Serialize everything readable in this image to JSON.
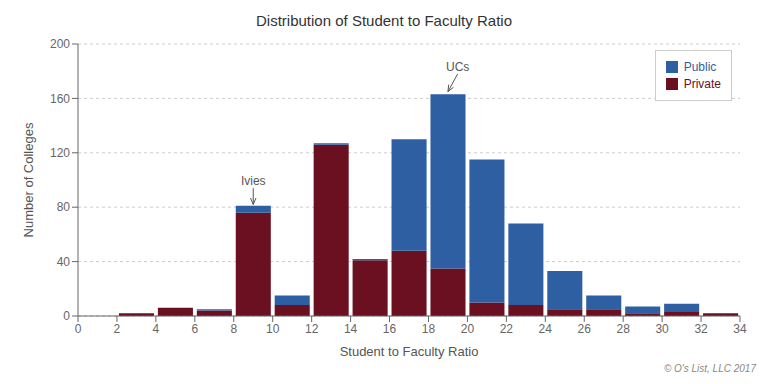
{
  "chart_data": {
    "type": "histogram",
    "title": "Distribution of Student to Faculty Ratio",
    "x_label": "Student to Faculty Ratio",
    "y_label": "Number of Colleges",
    "caption": "© O's List, LLC 2017",
    "bins": [
      0,
      2,
      4,
      6,
      8,
      10,
      12,
      14,
      16,
      18,
      20,
      22,
      24,
      26,
      28,
      30,
      32,
      34
    ],
    "series": [
      {
        "name": "Private",
        "color": "#6B1020",
        "values": [
          0,
          2,
          6,
          4,
          76,
          8,
          126,
          41,
          48,
          35,
          10,
          8,
          5,
          5,
          2,
          3,
          2
        ]
      },
      {
        "name": "Public",
        "color": "#2E5FA3",
        "values": [
          0,
          0,
          0,
          1,
          5,
          7,
          1,
          1,
          82,
          128,
          105,
          60,
          28,
          10,
          5,
          6,
          0
        ]
      }
    ],
    "stacked": true,
    "xlim": [
      0,
      34
    ],
    "xticks": [
      0,
      2,
      4,
      6,
      8,
      10,
      12,
      14,
      16,
      18,
      20,
      22,
      24,
      26,
      28,
      30,
      32,
      34
    ],
    "ylim": [
      0,
      200
    ],
    "yticks": [
      0,
      40,
      80,
      120,
      160,
      200
    ],
    "grid": true,
    "legend": "upper right",
    "annotations": [
      {
        "text": "Ivies",
        "x": 9.0,
        "y": 82,
        "text_x": 9.0,
        "text_y": 94
      },
      {
        "text": "UCs",
        "x": 19.0,
        "y": 165,
        "text_x": 19.5,
        "text_y": 178
      }
    ]
  }
}
